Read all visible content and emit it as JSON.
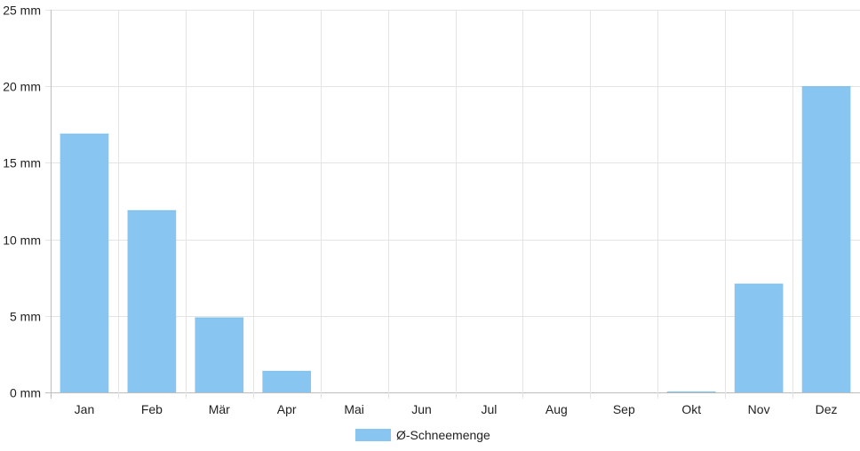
{
  "chart_data": {
    "type": "bar",
    "categories": [
      "Jan",
      "Feb",
      "Mär",
      "Apr",
      "Mai",
      "Jun",
      "Jul",
      "Aug",
      "Sep",
      "Okt",
      "Nov",
      "Dez"
    ],
    "series": [
      {
        "name": "Ø-Schneemenge",
        "values": [
          16.9,
          11.9,
          4.9,
          1.4,
          0,
          0,
          0,
          0,
          0,
          0.05,
          7.1,
          20.0
        ],
        "color": "#88c6f1"
      }
    ],
    "ylim": [
      0,
      25
    ],
    "y_ticks": [
      {
        "value": 0,
        "label": "0 mm"
      },
      {
        "value": 5,
        "label": "5 mm"
      },
      {
        "value": 10,
        "label": "10 mm"
      },
      {
        "value": 15,
        "label": "15 mm"
      },
      {
        "value": 20,
        "label": "20 mm"
      },
      {
        "value": 25,
        "label": "25 mm"
      }
    ],
    "grid": true,
    "legend_position": "bottom-center",
    "grid_color": "#e4e4e4",
    "axis_color": "#bdbdbd"
  }
}
